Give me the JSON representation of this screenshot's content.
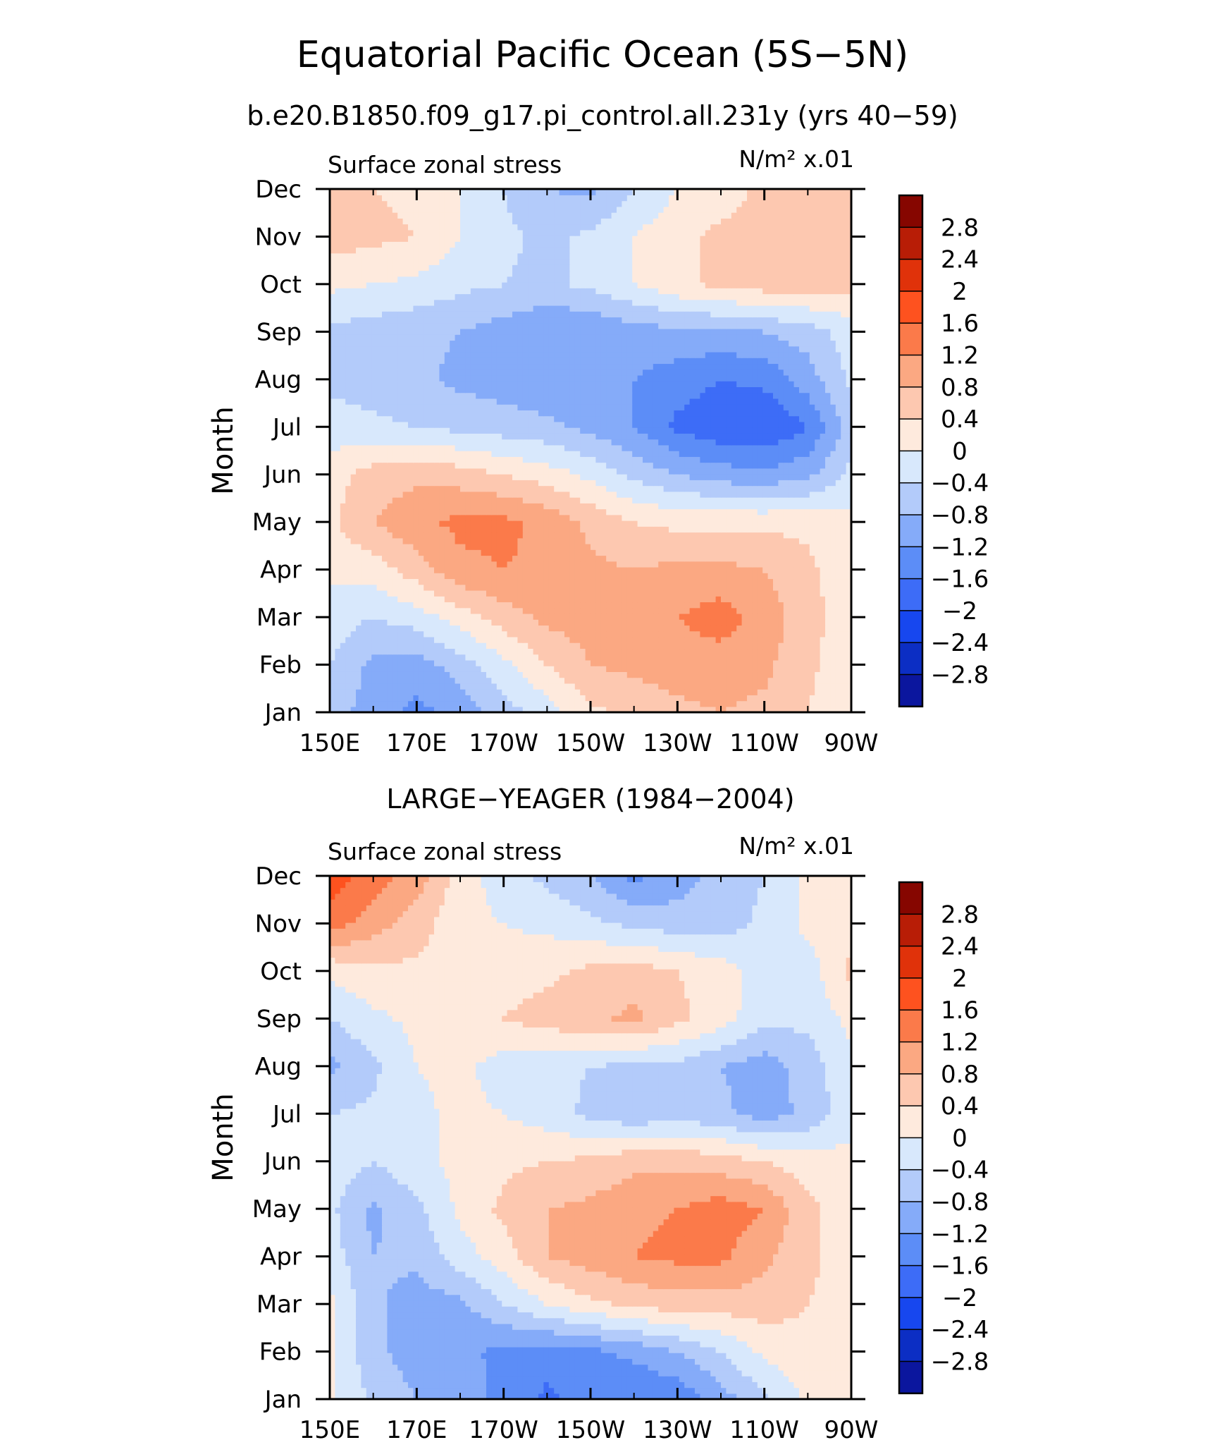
{
  "title": "Equatorial Pacific Ocean (5S−5N)",
  "subtitle": "b.e20.B1850.f09_g17.pi_control.all.231y (yrs 40−59)",
  "colors": {
    "levels": [
      "#08007f",
      "#0b169e",
      "#0c2ec4",
      "#1747ef",
      "#3d6cf7",
      "#5c8df7",
      "#85abf9",
      "#b3cbfa",
      "#d8e8fc",
      "#feeadd",
      "#fdc8b0",
      "#fba882",
      "#fb7a4a",
      "#fe521f",
      "#e0320a",
      "#b81d06",
      "#860600"
    ],
    "axis": "#000000"
  },
  "colorbar_labels": [
    "2.8",
    "2.4",
    "2",
    "1.6",
    "1.2",
    "0.8",
    "0.4",
    "0",
    "−0.4",
    "−0.8",
    "−1.2",
    "−1.6",
    "−2",
    "−2.4",
    "−2.8"
  ],
  "chart_data": [
    {
      "type": "heatmap",
      "panel_title": "",
      "left_label": "Surface zonal stress",
      "right_label": "N/m² x.01",
      "ylabel": "Month",
      "xlabel": "",
      "x_ticks": [
        "150E",
        "170E",
        "170W",
        "150W",
        "130W",
        "110W",
        "90W"
      ],
      "y_ticks": [
        "Jan",
        "Feb",
        "Mar",
        "Apr",
        "May",
        "Jun",
        "Jul",
        "Aug",
        "Sep",
        "Oct",
        "Nov",
        "Dec"
      ],
      "xlim": [
        150,
        270
      ],
      "ylim": [
        1,
        12
      ],
      "levels": [
        -2.8,
        -2.4,
        -2,
        -1.6,
        -1.2,
        -0.8,
        -0.4,
        0,
        0.4,
        0.8,
        1.2,
        1.6,
        2,
        2.4,
        2.8
      ],
      "x": [
        150,
        160,
        170,
        180,
        190,
        200,
        210,
        220,
        230,
        240,
        250,
        260,
        270
      ],
      "z": [
        [
          -0.6,
          -1.0,
          -1.3,
          -1.1,
          -0.6,
          -0.2,
          0.3,
          0.5,
          0.7,
          0.8,
          0.7,
          0.4,
          0.1
        ],
        [
          -0.4,
          -0.9,
          -1.0,
          -0.6,
          -0.1,
          0.4,
          0.8,
          0.9,
          1.0,
          1.0,
          0.9,
          0.5,
          0.1
        ],
        [
          -0.2,
          -0.4,
          -0.2,
          0.2,
          0.6,
          0.9,
          1.0,
          1.0,
          1.2,
          1.4,
          1.0,
          0.6,
          0.1
        ],
        [
          0.1,
          0.2,
          0.6,
          1.1,
          1.2,
          1.1,
          0.9,
          0.8,
          0.9,
          0.9,
          0.8,
          0.5,
          0.1
        ],
        [
          0.3,
          0.8,
          1.1,
          1.3,
          1.3,
          1.1,
          0.7,
          0.4,
          0.3,
          0.3,
          0.3,
          0.3,
          0.1
        ],
        [
          0.2,
          0.6,
          0.7,
          0.6,
          0.4,
          0.2,
          -0.1,
          -0.5,
          -0.8,
          -1.0,
          -1.1,
          -0.9,
          -0.3
        ],
        [
          -0.2,
          -0.3,
          -0.4,
          -0.5,
          -0.6,
          -0.7,
          -0.9,
          -1.2,
          -1.7,
          -1.9,
          -2.0,
          -1.6,
          -0.6
        ],
        [
          -0.5,
          -0.6,
          -0.7,
          -0.9,
          -1.0,
          -1.1,
          -1.1,
          -1.2,
          -1.4,
          -1.6,
          -1.5,
          -1.0,
          -0.3
        ],
        [
          -0.5,
          -0.6,
          -0.7,
          -0.8,
          -1.0,
          -1.2,
          -1.2,
          -1.0,
          -0.9,
          -0.9,
          -0.8,
          -0.6,
          -0.2
        ],
        [
          0.1,
          0.0,
          -0.1,
          -0.3,
          -0.4,
          -0.5,
          -0.3,
          0.0,
          0.3,
          0.5,
          0.6,
          0.6,
          0.5
        ],
        [
          0.6,
          0.5,
          0.4,
          0.0,
          -0.3,
          -0.5,
          -0.3,
          0.0,
          0.3,
          0.5,
          0.6,
          0.6,
          0.5
        ],
        [
          0.5,
          0.4,
          0.3,
          0.0,
          -0.4,
          -0.8,
          -0.9,
          -0.4,
          0.0,
          0.2,
          0.5,
          0.6,
          0.5
        ]
      ]
    },
    {
      "type": "heatmap",
      "panel_title": "LARGE−YEAGER (1984−2004)",
      "left_label": "Surface zonal stress",
      "right_label": "N/m² x.01",
      "ylabel": "Month",
      "xlabel": "",
      "x_ticks": [
        "150E",
        "170E",
        "170W",
        "150W",
        "130W",
        "110W",
        "90W"
      ],
      "y_ticks": [
        "Jan",
        "Feb",
        "Mar",
        "Apr",
        "May",
        "Jun",
        "Jul",
        "Aug",
        "Sep",
        "Oct",
        "Nov",
        "Dec"
      ],
      "xlim": [
        150,
        270
      ],
      "ylim": [
        1,
        12
      ],
      "levels": [
        -2.8,
        -2.4,
        -2,
        -1.6,
        -1.2,
        -0.8,
        -0.4,
        0,
        0.4,
        0.8,
        1.2,
        1.6,
        2,
        2.4,
        2.8
      ],
      "x": [
        150,
        160,
        170,
        180,
        190,
        200,
        210,
        220,
        230,
        240,
        250,
        260,
        270
      ],
      "z": [
        [
          0.1,
          -0.5,
          -0.8,
          -1.0,
          -1.3,
          -1.7,
          -1.4,
          -1.6,
          -1.5,
          -1.0,
          -0.5,
          0.1,
          0.2
        ],
        [
          0.1,
          -0.7,
          -1.0,
          -1.1,
          -1.3,
          -1.4,
          -1.3,
          -1.1,
          -0.8,
          -0.4,
          0.1,
          0.3,
          0.2
        ],
        [
          0.1,
          -0.7,
          -1.0,
          -0.9,
          -0.4,
          0.0,
          0.3,
          0.5,
          0.6,
          0.6,
          0.6,
          0.4,
          0.2
        ],
        [
          -0.2,
          -0.8,
          -0.7,
          -0.2,
          0.2,
          0.8,
          1.0,
          1.2,
          1.3,
          1.3,
          0.9,
          0.5,
          0.2
        ],
        [
          -0.3,
          -0.9,
          -0.5,
          0.1,
          0.5,
          0.8,
          0.9,
          1.1,
          1.2,
          1.4,
          1.2,
          0.5,
          0.2
        ],
        [
          -0.1,
          -0.4,
          -0.1,
          0.1,
          0.3,
          0.4,
          0.5,
          0.7,
          0.7,
          0.6,
          0.4,
          0.2,
          0.1
        ],
        [
          -0.4,
          -0.3,
          -0.1,
          0.1,
          0.0,
          -0.2,
          -0.5,
          -0.7,
          -0.6,
          -0.7,
          -1.0,
          -0.7,
          -0.1
        ],
        [
          -0.9,
          -0.5,
          0.0,
          0.1,
          -0.2,
          -0.3,
          -0.4,
          -0.5,
          -0.5,
          -0.8,
          -1.0,
          -0.6,
          -0.1
        ],
        [
          -0.4,
          -0.1,
          0.1,
          0.3,
          0.4,
          0.6,
          0.7,
          0.9,
          0.5,
          0.2,
          -0.3,
          -0.3,
          0.1
        ],
        [
          0.1,
          0.3,
          0.3,
          0.2,
          0.2,
          0.3,
          0.5,
          0.6,
          0.4,
          0.2,
          -0.2,
          -0.2,
          0.5
        ],
        [
          1.4,
          1.0,
          0.6,
          0.1,
          0.0,
          -0.1,
          -0.3,
          -0.5,
          -0.6,
          -0.6,
          -0.3,
          0.1,
          0.3
        ],
        [
          1.8,
          1.4,
          1.0,
          0.2,
          -0.2,
          -0.5,
          -0.8,
          -1.3,
          -1.0,
          -0.6,
          -0.4,
          0.1,
          0.2
        ]
      ]
    }
  ]
}
